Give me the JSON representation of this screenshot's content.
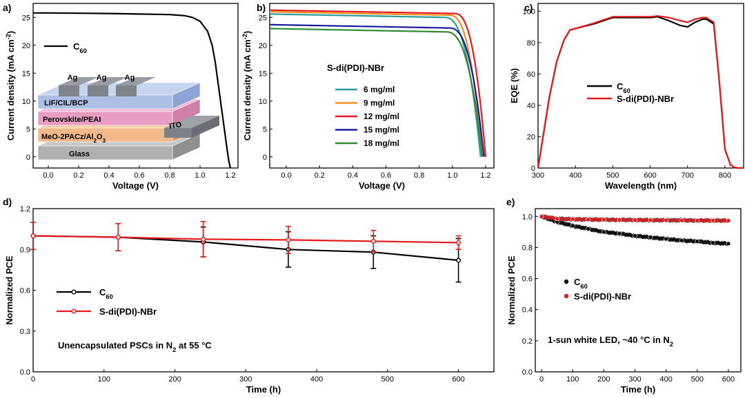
{
  "chart_data": [
    {
      "panel": "a)",
      "type": "line",
      "xlabel": "Voltage (V)",
      "ylabel": "Current density (mA cm",
      "ylabel_sup": "-2",
      "ylabel_end": ")",
      "xlim": [
        -0.1,
        1.25
      ],
      "ylim": [
        -2,
        27.5
      ],
      "xticks": [
        0.0,
        0.2,
        0.4,
        0.6,
        0.8,
        1.0,
        1.2
      ],
      "yticks": [
        0,
        5,
        10,
        15,
        20,
        25
      ],
      "series": [
        {
          "name": "C",
          "name_sub": "60",
          "color": "#000000",
          "x": [
            -0.1,
            0.0,
            0.2,
            0.4,
            0.6,
            0.8,
            0.9,
            0.95,
            1.0,
            1.05,
            1.08,
            1.1,
            1.12,
            1.14,
            1.16,
            1.18,
            1.19,
            1.2
          ],
          "y": [
            25.8,
            25.8,
            25.75,
            25.7,
            25.6,
            25.5,
            25.3,
            25.0,
            24.3,
            22.5,
            20.0,
            17.0,
            13.0,
            9.0,
            5.0,
            1.0,
            -0.8,
            -2
          ]
        }
      ],
      "inset_layers": [
        "Glass",
        "MeO-2PACz/Al",
        "Perovskite/PEAI",
        "LiF/CIL/BCP"
      ],
      "inset_layer_parts": {
        "al": "2",
        "o": "O",
        "three": "3"
      },
      "inset_ag": [
        "Ag",
        "Ag",
        "Ag"
      ],
      "inset_ito": "ITO"
    },
    {
      "panel": "b)",
      "type": "line",
      "xlabel": "Voltage (V)",
      "ylabel": "Current density (mA cm",
      "ylabel_sup": "-2",
      "ylabel_end": ")",
      "xlim": [
        -0.1,
        1.25
      ],
      "ylim": [
        -2,
        27.5
      ],
      "xticks": [
        0.0,
        0.2,
        0.4,
        0.6,
        0.8,
        1.0,
        1.2
      ],
      "yticks": [
        0,
        5,
        10,
        15,
        20,
        25
      ],
      "legend_title": "S-di(PDI)-NBr",
      "series": [
        {
          "name": "6 mg/ml",
          "color": "#2a9d9a",
          "jsc": 25.6,
          "voc": 1.17,
          "knee": 0.95
        },
        {
          "name": "9 mg/ml",
          "color": "#f28e1c",
          "jsc": 26.0,
          "voc": 1.18,
          "knee": 0.98
        },
        {
          "name": "12 mg/ml",
          "color": "#e41a1c",
          "jsc": 26.3,
          "voc": 1.2,
          "knee": 1.01
        },
        {
          "name": "15 mg/ml",
          "color": "#1a1a9c",
          "jsc": 23.7,
          "voc": 1.19,
          "knee": 0.98
        },
        {
          "name": "18 mg/ml",
          "color": "#2e8b2e",
          "jsc": 23.0,
          "voc": 1.18,
          "knee": 0.96
        }
      ]
    },
    {
      "panel": "c)",
      "type": "line",
      "xlabel": "Wavelength (nm)",
      "ylabel": "EQE (%)",
      "xlim": [
        300,
        850
      ],
      "ylim": [
        0,
        105
      ],
      "xticks": [
        300,
        400,
        500,
        600,
        700,
        800
      ],
      "yticks": [
        0,
        20,
        40,
        60,
        80,
        100
      ],
      "series": [
        {
          "name": "C",
          "name_sub": "60",
          "color": "#000000",
          "x": [
            300,
            310,
            330,
            350,
            370,
            385,
            400,
            450,
            500,
            550,
            600,
            620,
            650,
            680,
            700,
            720,
            740,
            750,
            770,
            785,
            800,
            815,
            825,
            835,
            850
          ],
          "y": [
            0,
            15,
            45,
            68,
            82,
            88,
            89,
            92,
            96,
            96,
            96,
            96.5,
            94,
            91,
            90,
            93,
            95,
            95,
            92,
            55,
            12,
            2,
            0.5,
            0,
            0
          ]
        },
        {
          "name": "S-di(PDI)-NBr",
          "color": "#e41a1c",
          "x": [
            300,
            310,
            330,
            350,
            370,
            385,
            400,
            450,
            500,
            550,
            600,
            620,
            650,
            680,
            700,
            720,
            740,
            750,
            770,
            785,
            800,
            815,
            825,
            835,
            850
          ],
          "y": [
            0,
            15,
            45,
            68,
            82,
            88,
            89,
            92.5,
            96.5,
            96.5,
            96.5,
            97,
            96,
            94,
            93,
            95,
            96,
            96,
            93,
            55,
            12,
            2,
            0.5,
            0,
            0
          ]
        }
      ]
    },
    {
      "panel": "d)",
      "type": "line",
      "xlabel": "Time (h)",
      "ylabel": "Normalized PCE",
      "xlim": [
        0,
        650
      ],
      "ylim": [
        0.0,
        1.2
      ],
      "xticks": [
        0,
        100,
        200,
        300,
        400,
        500,
        600
      ],
      "yticks": [
        0.0,
        0.3,
        0.6,
        0.9,
        1.2
      ],
      "annotation": "Unencapsulated PSCs in N",
      "annotation_sub": "2",
      "annotation_end": " at 55 °C",
      "series": [
        {
          "name": "C",
          "name_sub": "60",
          "color": "#000000",
          "x": [
            0,
            120,
            240,
            360,
            480,
            600
          ],
          "y": [
            1.0,
            0.99,
            0.955,
            0.9,
            0.88,
            0.82
          ],
          "err": [
            0.1,
            0.1,
            0.11,
            0.13,
            0.12,
            0.16
          ]
        },
        {
          "name": "S-di(PDI)-NBr",
          "color": "#e41a1c",
          "x": [
            0,
            120,
            240,
            360,
            480,
            600
          ],
          "y": [
            1.0,
            0.99,
            0.975,
            0.97,
            0.96,
            0.95
          ],
          "err": [
            0.1,
            0.1,
            0.13,
            0.1,
            0.08,
            0.05
          ]
        }
      ]
    },
    {
      "panel": "e)",
      "type": "scatter",
      "xlabel": "Time (h)",
      "ylabel": "Normalized PCE",
      "xlim": [
        -20,
        640
      ],
      "ylim": [
        0.0,
        1.05
      ],
      "xticks": [
        0,
        100,
        200,
        300,
        400,
        500,
        600
      ],
      "yticks": [
        0.0,
        0.2,
        0.4,
        0.6,
        0.8,
        1.0
      ],
      "annotation": "1-sun white LED, ~40 °C in N",
      "annotation_sub": "2",
      "series": [
        {
          "name": "C",
          "name_sub": "60",
          "color": "#000000",
          "x": [
            0,
            50,
            100,
            150,
            200,
            250,
            300,
            350,
            400,
            450,
            500,
            550,
            600
          ],
          "y": [
            1.0,
            0.965,
            0.94,
            0.92,
            0.9,
            0.89,
            0.875,
            0.865,
            0.855,
            0.845,
            0.84,
            0.83,
            0.825
          ]
        },
        {
          "name": "S-di(PDI)-NBr",
          "color": "#e41a1c",
          "x": [
            0,
            50,
            100,
            150,
            200,
            250,
            300,
            350,
            400,
            450,
            500,
            550,
            600
          ],
          "y": [
            1.0,
            0.985,
            0.982,
            0.98,
            0.979,
            0.978,
            0.977,
            0.976,
            0.975,
            0.975,
            0.974,
            0.974,
            0.973
          ]
        }
      ]
    }
  ]
}
